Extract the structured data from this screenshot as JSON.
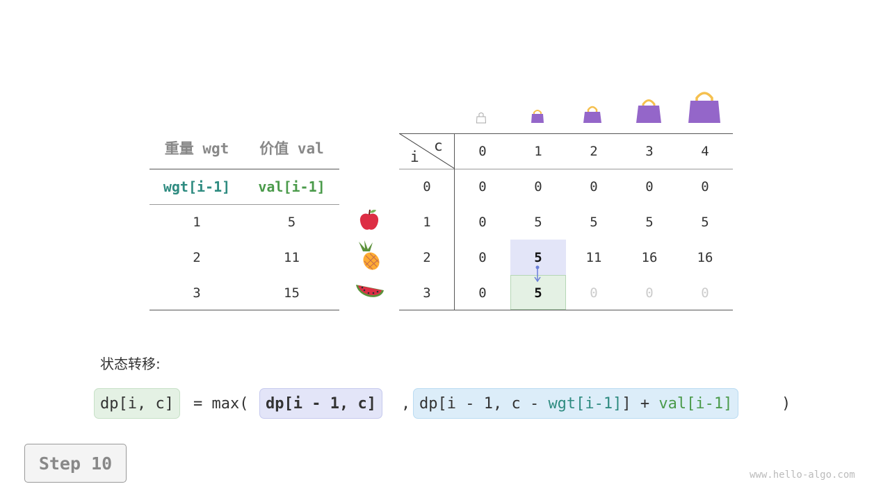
{
  "left_table": {
    "headers": [
      "重量 wgt",
      "价值 val"
    ],
    "subheaders": [
      "wgt[i-1]",
      "val[i-1]"
    ],
    "rows": [
      [
        "1",
        "5"
      ],
      [
        "2",
        "11"
      ],
      [
        "3",
        "15"
      ]
    ]
  },
  "items": [
    "apple-icon",
    "pineapple-icon",
    "watermelon-icon"
  ],
  "capacity_icons": [
    "bag-empty-icon",
    "bag-1-icon",
    "bag-2-icon",
    "bag-3-icon",
    "bag-4-icon"
  ],
  "dp_table": {
    "corner_c": "c",
    "corner_i": "i",
    "col_headers": [
      "0",
      "1",
      "2",
      "3",
      "4"
    ],
    "row_headers": [
      "0",
      "1",
      "2",
      "3"
    ],
    "rows": [
      [
        "0",
        "0",
        "0",
        "0",
        "0"
      ],
      [
        "0",
        "5",
        "5",
        "5",
        "5"
      ],
      [
        "0",
        "5",
        "11",
        "16",
        "16"
      ],
      [
        "0",
        "5",
        "0",
        "0",
        "0"
      ]
    ]
  },
  "highlight": {
    "source_cell": "dp[2,1]",
    "target_cell": "dp[3,1]"
  },
  "colors": {
    "teal": "#2e8b80",
    "green": "#4a9a4a",
    "source_bg": "#e3e5f8",
    "target_bg": "#e4f1e4",
    "option2_bg": "#dcedf9",
    "bag": "#9466c9",
    "handle": "#f5c04f"
  },
  "formula": {
    "label": "状态转移:",
    "lhs": "dp[i, c]",
    "eq": "= max(",
    "opt1": "dp[i - 1, c]",
    "comma": ",",
    "opt2_a": "dp[i - 1, c - ",
    "opt2_wgt": "wgt[i-1]",
    "opt2_b": "] + ",
    "opt2_val": "val[i-1]",
    "close": ")"
  },
  "step_label": "Step 10",
  "watermark": "www.hello-algo.com"
}
